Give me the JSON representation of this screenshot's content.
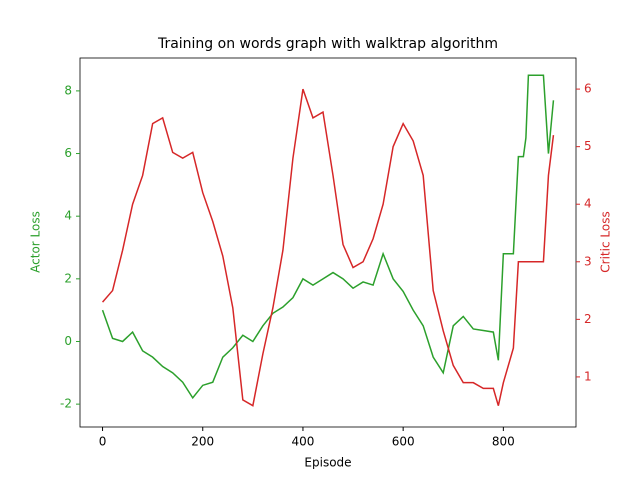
{
  "chart_data": {
    "type": "line",
    "title": "Training on words graph with walktrap algorithm",
    "xlabel": "Episode",
    "ylabel": "Actor Loss",
    "y2label": "Critic Loss",
    "x": [
      0,
      20,
      40,
      60,
      80,
      100,
      120,
      140,
      160,
      180,
      200,
      220,
      240,
      260,
      280,
      300,
      320,
      340,
      360,
      380,
      400,
      420,
      440,
      460,
      480,
      500,
      520,
      540,
      560,
      580,
      600,
      620,
      640,
      660,
      680,
      700,
      720,
      740,
      760,
      780,
      790,
      800,
      820,
      830,
      840,
      845,
      850,
      880,
      890,
      900
    ],
    "series": [
      {
        "name": "Actor Loss",
        "color": "#2ca02c",
        "axis": "y",
        "values": [
          1.0,
          0.1,
          0.0,
          0.3,
          -0.3,
          -0.5,
          -0.8,
          -1.0,
          -1.3,
          -1.8,
          -1.4,
          -1.3,
          -0.5,
          -0.2,
          0.2,
          0.0,
          0.5,
          0.9,
          1.1,
          1.4,
          2.0,
          1.8,
          2.0,
          2.2,
          2.0,
          1.7,
          1.9,
          1.8,
          2.8,
          2.0,
          1.6,
          1.0,
          0.5,
          -0.5,
          -1.0,
          0.5,
          0.8,
          0.4,
          0.35,
          0.3,
          -0.6,
          2.8,
          2.8,
          5.9,
          5.9,
          6.5,
          8.5,
          8.5,
          6.0,
          7.7
        ]
      },
      {
        "name": "Critic Loss",
        "color": "#d62728",
        "axis": "y2",
        "values": [
          2.3,
          2.5,
          3.2,
          4.0,
          4.5,
          5.4,
          5.5,
          4.9,
          4.8,
          4.9,
          4.2,
          3.7,
          3.1,
          2.2,
          0.6,
          0.5,
          1.4,
          2.2,
          3.2,
          4.8,
          6.0,
          5.5,
          5.6,
          4.5,
          3.3,
          2.9,
          3.0,
          3.4,
          4.0,
          5.0,
          5.4,
          5.1,
          4.5,
          2.5,
          1.8,
          1.2,
          0.9,
          0.9,
          0.8,
          0.8,
          0.5,
          0.9,
          1.5,
          3.0,
          3.0,
          3.0,
          3.0,
          3.0,
          4.5,
          5.2
        ]
      }
    ],
    "xlim": [
      -45,
      945
    ],
    "xticks": [
      0,
      200,
      400,
      600,
      800
    ],
    "ylim": [
      -2.73,
      9.05
    ],
    "yticks": [
      -2,
      0,
      2,
      4,
      6,
      8
    ],
    "y2lim": [
      0.13,
      6.54
    ],
    "y2ticks": [
      1,
      2,
      3,
      4,
      5,
      6
    ],
    "grid": false
  }
}
